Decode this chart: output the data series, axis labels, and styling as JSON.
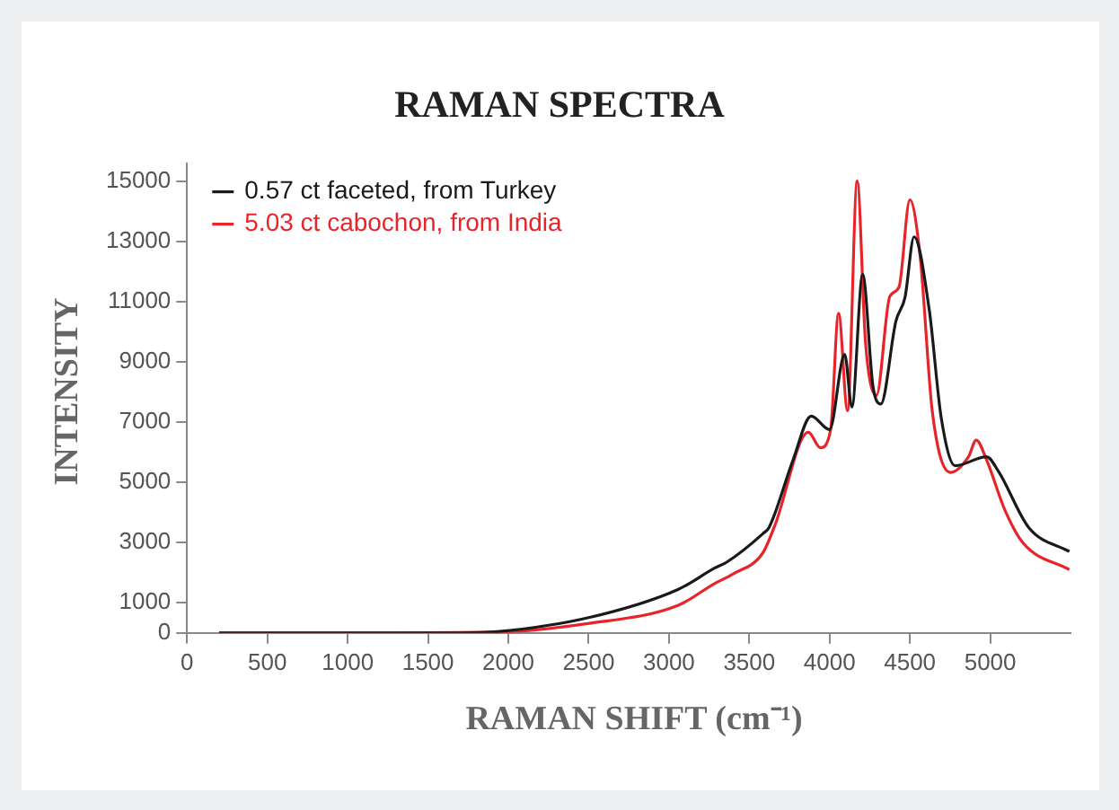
{
  "chart_data": {
    "type": "line",
    "title": "RAMAN SPECTRA",
    "xlabel": "RAMAN SHIFT (cm⁻¹)",
    "ylabel": "INTENSITY",
    "xlim": [
      0,
      5500
    ],
    "xticks": [
      0,
      500,
      1000,
      1500,
      2000,
      2500,
      3000,
      3500,
      4000,
      4500,
      5000
    ],
    "ylim": [
      0,
      15600
    ],
    "yticks": [
      0,
      1000,
      3000,
      5000,
      7000,
      9000,
      11000,
      13000,
      15000
    ],
    "grid": false,
    "legend": "top left",
    "series": [
      {
        "name": "0.57 ct faceted, from Turkey",
        "color": "#1a1a1a",
        "x": [
          200,
          1000,
          1700,
          1930,
          2494,
          3059,
          3284,
          3360,
          3586,
          3623,
          3773,
          3886,
          4000,
          4094,
          4139,
          4206,
          4270,
          4319,
          4413,
          4470,
          4526,
          4620,
          4695,
          4782,
          4977,
          5053,
          5240,
          5493
        ],
        "values": [
          0,
          0,
          0,
          40,
          500,
          1450,
          2150,
          2350,
          3300,
          3500,
          5750,
          7200,
          6750,
          9250,
          7500,
          11900,
          8200,
          7600,
          10350,
          11150,
          13150,
          10750,
          7150,
          5550,
          5850,
          5350,
          3500,
          2700
        ]
      },
      {
        "name": "5.03 ct cabochon, from India",
        "color": "#e8242b",
        "x": [
          200,
          1000,
          1900,
          2494,
          3059,
          3284,
          3397,
          3586,
          3661,
          3868,
          3943,
          4007,
          4056,
          4112,
          4172,
          4224,
          4292,
          4375,
          4432,
          4500,
          4564,
          4639,
          4752,
          4865,
          4913,
          4977,
          5090,
          5203,
          5493
        ],
        "values": [
          0,
          0,
          20,
          310,
          920,
          1640,
          1950,
          2670,
          3590,
          6660,
          6150,
          6760,
          10610,
          7380,
          15000,
          9630,
          7890,
          11170,
          11480,
          14380,
          12500,
          7380,
          5330,
          5850,
          6400,
          5750,
          4100,
          3000,
          2100
        ]
      }
    ]
  }
}
